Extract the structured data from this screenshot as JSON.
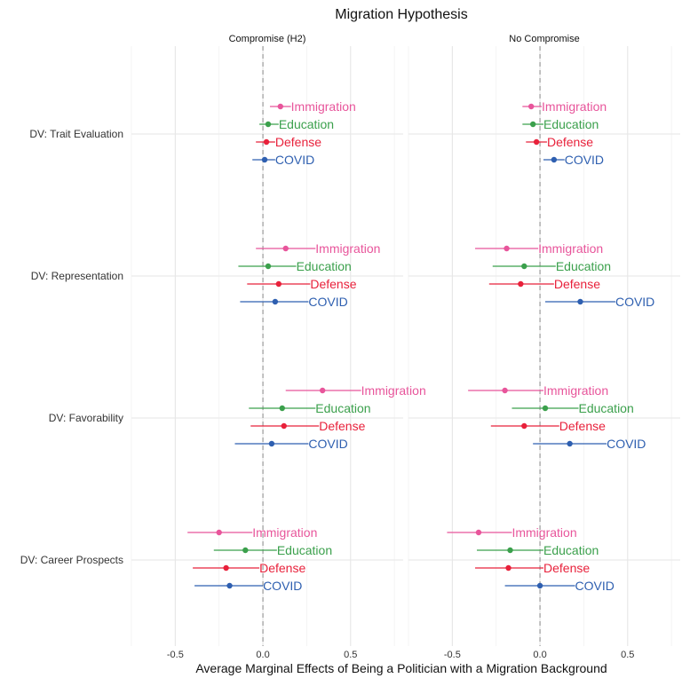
{
  "chart_data": {
    "type": "forest",
    "title": "Migration Hypothesis",
    "xlabel": "Average Marginal Effects of Being a Politician with a Migration Background",
    "ylabel": "",
    "xlim": [
      -0.75,
      0.8
    ],
    "x_ticks": [
      -0.5,
      0.0,
      0.5
    ],
    "x_tick_labels": [
      "-0.5",
      "0.0",
      "0.5"
    ],
    "reference_line": 0,
    "grid": true,
    "outcomes": [
      "DV: Trait Evaluation",
      "DV: Representation",
      "DV: Favorability",
      "DV: Career Prospects"
    ],
    "series": [
      {
        "name": "Immigration",
        "color": "#E8559B"
      },
      {
        "name": "Education",
        "color": "#3BA04C"
      },
      {
        "name": "Defense",
        "color": "#E8213B"
      },
      {
        "name": "COVID",
        "color": "#2E5FB0"
      }
    ],
    "panels": [
      {
        "title": "Compromise (H2)",
        "estimates": [
          {
            "outcome": "DV: Trait Evaluation",
            "series": "Immigration",
            "estimate": 0.1,
            "lower": 0.04,
            "upper": 0.16
          },
          {
            "outcome": "DV: Trait Evaluation",
            "series": "Education",
            "estimate": 0.03,
            "lower": -0.02,
            "upper": 0.09
          },
          {
            "outcome": "DV: Trait Evaluation",
            "series": "Defense",
            "estimate": 0.02,
            "lower": -0.04,
            "upper": 0.07
          },
          {
            "outcome": "DV: Trait Evaluation",
            "series": "COVID",
            "estimate": 0.01,
            "lower": -0.06,
            "upper": 0.07
          },
          {
            "outcome": "DV: Representation",
            "series": "Immigration",
            "estimate": 0.13,
            "lower": -0.04,
            "upper": 0.3
          },
          {
            "outcome": "DV: Representation",
            "series": "Education",
            "estimate": 0.03,
            "lower": -0.14,
            "upper": 0.19
          },
          {
            "outcome": "DV: Representation",
            "series": "Defense",
            "estimate": 0.09,
            "lower": -0.09,
            "upper": 0.27
          },
          {
            "outcome": "DV: Representation",
            "series": "COVID",
            "estimate": 0.07,
            "lower": -0.13,
            "upper": 0.26
          },
          {
            "outcome": "DV: Favorability",
            "series": "Immigration",
            "estimate": 0.34,
            "lower": 0.13,
            "upper": 0.56
          },
          {
            "outcome": "DV: Favorability",
            "series": "Education",
            "estimate": 0.11,
            "lower": -0.08,
            "upper": 0.3
          },
          {
            "outcome": "DV: Favorability",
            "series": "Defense",
            "estimate": 0.12,
            "lower": -0.07,
            "upper": 0.32
          },
          {
            "outcome": "DV: Favorability",
            "series": "COVID",
            "estimate": 0.05,
            "lower": -0.16,
            "upper": 0.26
          },
          {
            "outcome": "DV: Career Prospects",
            "series": "Immigration",
            "estimate": -0.25,
            "lower": -0.43,
            "upper": -0.06
          },
          {
            "outcome": "DV: Career Prospects",
            "series": "Education",
            "estimate": -0.1,
            "lower": -0.28,
            "upper": 0.08
          },
          {
            "outcome": "DV: Career Prospects",
            "series": "Defense",
            "estimate": -0.21,
            "lower": -0.4,
            "upper": -0.02
          },
          {
            "outcome": "DV: Career Prospects",
            "series": "COVID",
            "estimate": -0.19,
            "lower": -0.39,
            "upper": 0.0
          }
        ]
      },
      {
        "title": "No Compromise",
        "estimates": [
          {
            "outcome": "DV: Trait Evaluation",
            "series": "Immigration",
            "estimate": -0.05,
            "lower": -0.1,
            "upper": 0.01
          },
          {
            "outcome": "DV: Trait Evaluation",
            "series": "Education",
            "estimate": -0.04,
            "lower": -0.1,
            "upper": 0.02
          },
          {
            "outcome": "DV: Trait Evaluation",
            "series": "Defense",
            "estimate": -0.02,
            "lower": -0.08,
            "upper": 0.04
          },
          {
            "outcome": "DV: Trait Evaluation",
            "series": "COVID",
            "estimate": 0.08,
            "lower": 0.02,
            "upper": 0.14
          },
          {
            "outcome": "DV: Representation",
            "series": "Immigration",
            "estimate": -0.19,
            "lower": -0.37,
            "upper": -0.01
          },
          {
            "outcome": "DV: Representation",
            "series": "Education",
            "estimate": -0.09,
            "lower": -0.27,
            "upper": 0.09
          },
          {
            "outcome": "DV: Representation",
            "series": "Defense",
            "estimate": -0.11,
            "lower": -0.29,
            "upper": 0.08
          },
          {
            "outcome": "DV: Representation",
            "series": "COVID",
            "estimate": 0.23,
            "lower": 0.03,
            "upper": 0.43
          },
          {
            "outcome": "DV: Favorability",
            "series": "Immigration",
            "estimate": -0.2,
            "lower": -0.41,
            "upper": 0.02
          },
          {
            "outcome": "DV: Favorability",
            "series": "Education",
            "estimate": 0.03,
            "lower": -0.16,
            "upper": 0.22
          },
          {
            "outcome": "DV: Favorability",
            "series": "Defense",
            "estimate": -0.09,
            "lower": -0.28,
            "upper": 0.11
          },
          {
            "outcome": "DV: Favorability",
            "series": "COVID",
            "estimate": 0.17,
            "lower": -0.04,
            "upper": 0.38
          },
          {
            "outcome": "DV: Career Prospects",
            "series": "Immigration",
            "estimate": -0.35,
            "lower": -0.53,
            "upper": -0.16
          },
          {
            "outcome": "DV: Career Prospects",
            "series": "Education",
            "estimate": -0.17,
            "lower": -0.36,
            "upper": 0.02
          },
          {
            "outcome": "DV: Career Prospects",
            "series": "Defense",
            "estimate": -0.18,
            "lower": -0.37,
            "upper": 0.02
          },
          {
            "outcome": "DV: Career Prospects",
            "series": "COVID",
            "estimate": 0.0,
            "lower": -0.2,
            "upper": 0.2
          }
        ]
      }
    ]
  }
}
